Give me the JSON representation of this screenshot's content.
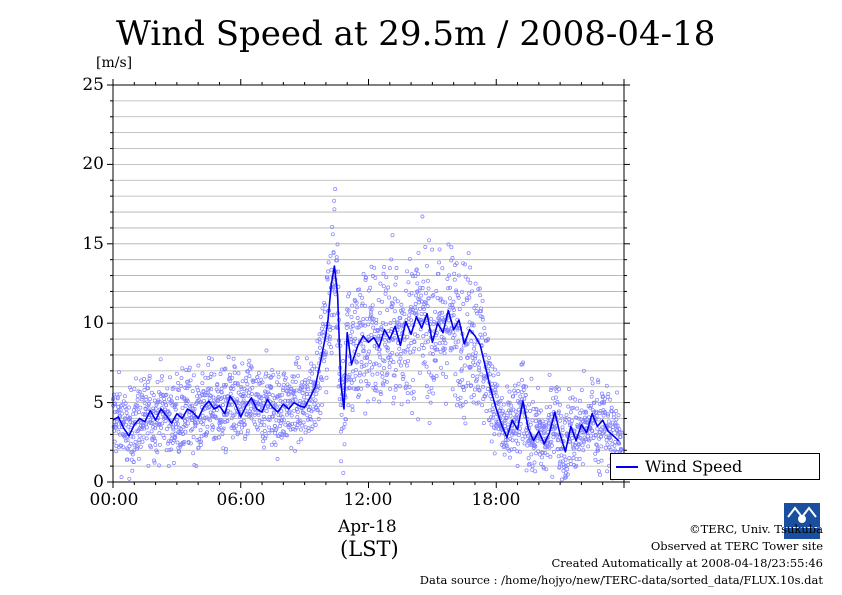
{
  "chart_data": {
    "type": "scatter",
    "title": "Wind Speed at 29.5m / 2008-04-18",
    "ylabel": "[m/s]",
    "xlabel": "(LST)",
    "date_label": "Apr-18",
    "ylim": [
      0,
      25
    ],
    "xlim": [
      "00:00",
      "24:00"
    ],
    "y_ticks": [
      "0",
      "5",
      "10",
      "15",
      "20",
      "25"
    ],
    "x_ticks": [
      "00:00",
      "06:00",
      "12:00",
      "18:00"
    ],
    "grid": true,
    "legend_position": "right",
    "series": [
      {
        "name": "Wind Speed",
        "style": "line",
        "color": "#0000ee",
        "points_hours_speed": [
          [
            0.0,
            3.9
          ],
          [
            0.25,
            4.1
          ],
          [
            0.5,
            3.4
          ],
          [
            0.75,
            2.9
          ],
          [
            1.0,
            3.6
          ],
          [
            1.25,
            4.0
          ],
          [
            1.5,
            3.8
          ],
          [
            1.75,
            4.5
          ],
          [
            2.0,
            3.9
          ],
          [
            2.25,
            4.6
          ],
          [
            2.5,
            4.2
          ],
          [
            2.75,
            3.7
          ],
          [
            3.0,
            4.3
          ],
          [
            3.25,
            4.0
          ],
          [
            3.5,
            4.6
          ],
          [
            3.75,
            4.4
          ],
          [
            4.0,
            4.0
          ],
          [
            4.25,
            4.7
          ],
          [
            4.5,
            5.1
          ],
          [
            4.75,
            4.6
          ],
          [
            5.0,
            4.8
          ],
          [
            5.25,
            4.3
          ],
          [
            5.5,
            5.4
          ],
          [
            5.75,
            4.9
          ],
          [
            6.0,
            4.1
          ],
          [
            6.25,
            4.8
          ],
          [
            6.5,
            5.3
          ],
          [
            6.75,
            4.6
          ],
          [
            7.0,
            4.4
          ],
          [
            7.25,
            5.2
          ],
          [
            7.5,
            4.7
          ],
          [
            7.75,
            4.4
          ],
          [
            8.0,
            4.9
          ],
          [
            8.25,
            4.6
          ],
          [
            8.5,
            5.0
          ],
          [
            8.75,
            4.8
          ],
          [
            9.0,
            4.7
          ],
          [
            9.25,
            5.3
          ],
          [
            9.5,
            6.0
          ],
          [
            9.75,
            7.6
          ],
          [
            10.0,
            9.3
          ],
          [
            10.1,
            10.2
          ],
          [
            10.25,
            12.4
          ],
          [
            10.4,
            13.6
          ],
          [
            10.55,
            11.8
          ],
          [
            10.7,
            6.2
          ],
          [
            10.85,
            4.6
          ],
          [
            11.0,
            9.4
          ],
          [
            11.2,
            7.4
          ],
          [
            11.5,
            8.6
          ],
          [
            11.75,
            9.2
          ],
          [
            12.0,
            8.8
          ],
          [
            12.25,
            9.1
          ],
          [
            12.5,
            8.5
          ],
          [
            12.75,
            9.6
          ],
          [
            13.0,
            9.0
          ],
          [
            13.25,
            9.8
          ],
          [
            13.5,
            8.6
          ],
          [
            13.75,
            10.1
          ],
          [
            14.0,
            9.3
          ],
          [
            14.25,
            10.4
          ],
          [
            14.5,
            9.7
          ],
          [
            14.75,
            10.6
          ],
          [
            15.0,
            8.8
          ],
          [
            15.25,
            10.0
          ],
          [
            15.5,
            9.4
          ],
          [
            15.75,
            10.8
          ],
          [
            16.0,
            9.6
          ],
          [
            16.25,
            10.2
          ],
          [
            16.5,
            8.7
          ],
          [
            16.75,
            9.6
          ],
          [
            17.0,
            9.2
          ],
          [
            17.25,
            8.6
          ],
          [
            17.5,
            7.2
          ],
          [
            17.75,
            5.8
          ],
          [
            18.0,
            4.6
          ],
          [
            18.25,
            3.6
          ],
          [
            18.5,
            2.8
          ],
          [
            18.75,
            3.9
          ],
          [
            19.0,
            3.3
          ],
          [
            19.25,
            5.1
          ],
          [
            19.5,
            3.4
          ],
          [
            19.75,
            2.6
          ],
          [
            20.0,
            3.2
          ],
          [
            20.25,
            2.4
          ],
          [
            20.5,
            3.1
          ],
          [
            20.75,
            4.4
          ],
          [
            21.0,
            3.0
          ],
          [
            21.25,
            1.9
          ],
          [
            21.5,
            3.5
          ],
          [
            21.75,
            2.6
          ],
          [
            22.0,
            3.6
          ],
          [
            22.25,
            3.1
          ],
          [
            22.5,
            4.3
          ],
          [
            22.75,
            3.5
          ],
          [
            23.0,
            3.9
          ],
          [
            23.25,
            3.2
          ],
          [
            23.5,
            2.9
          ],
          [
            23.75,
            2.6
          ]
        ]
      }
    ],
    "scatter_raw_samples": "10-second samples scattered around the mean line (light blue circles)",
    "colors": {
      "line": "#0000ee",
      "points": "#8080ff",
      "grid": "#b0b0b0",
      "frame": "#000000"
    }
  },
  "legend": {
    "label": "Wind Speed"
  },
  "footer": {
    "copyright": "©TERC, Univ. Tsukuba",
    "observed": "Observed at TERC Tower site",
    "created": "Created Automatically at 2008-04-18/23:55:46",
    "source": "Data source : /home/hojyo/new/TERC-data/sorted_data/FLUX.10s.dat",
    "logo_text": "TERC"
  }
}
